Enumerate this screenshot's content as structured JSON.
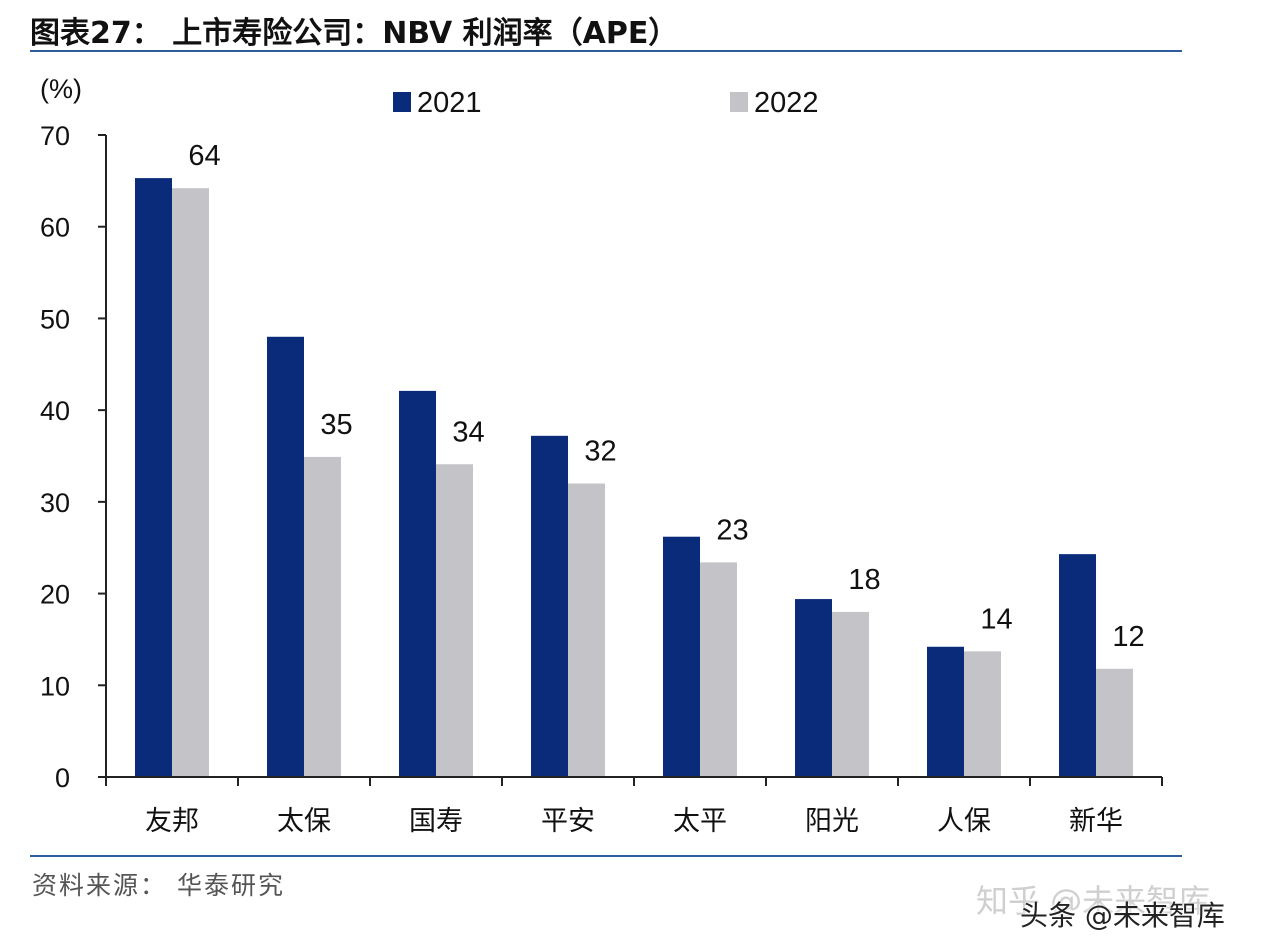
{
  "header": {
    "title": "图表27： 上市寿险公司：NBV 利润率（APE）"
  },
  "footer": {
    "source": "资料来源： 华泰研究",
    "watermark_zhihu": "知乎 @未来智库",
    "watermark_toutiao": "头条 @未来智库"
  },
  "colors": {
    "series_2021": "#0a2a7a",
    "series_2022": "#c4c4c8",
    "rule": "#2e5b9a"
  },
  "chart_data": {
    "type": "bar",
    "title": "",
    "ylabel": "(%)",
    "xlabel": "",
    "ylim": [
      0,
      70
    ],
    "yticks": [
      "0",
      "10",
      "20",
      "30",
      "40",
      "50",
      "60",
      "70"
    ],
    "legend_position": "top",
    "grid": false,
    "categories": [
      "友邦",
      "太保",
      "国寿",
      "平安",
      "太平",
      "阳光",
      "人保",
      "新华"
    ],
    "series": [
      {
        "name": "2021",
        "values": [
          65.3,
          48,
          42.1,
          37.2,
          26.2,
          19.4,
          14.2,
          24.3
        ]
      },
      {
        "name": "2022",
        "values": [
          64.2,
          34.9,
          34.1,
          32,
          23.4,
          18,
          13.7,
          11.8
        ]
      }
    ],
    "data_labels": [
      "64",
      "35",
      "34",
      "32",
      "23",
      "18",
      "14",
      "12"
    ]
  }
}
